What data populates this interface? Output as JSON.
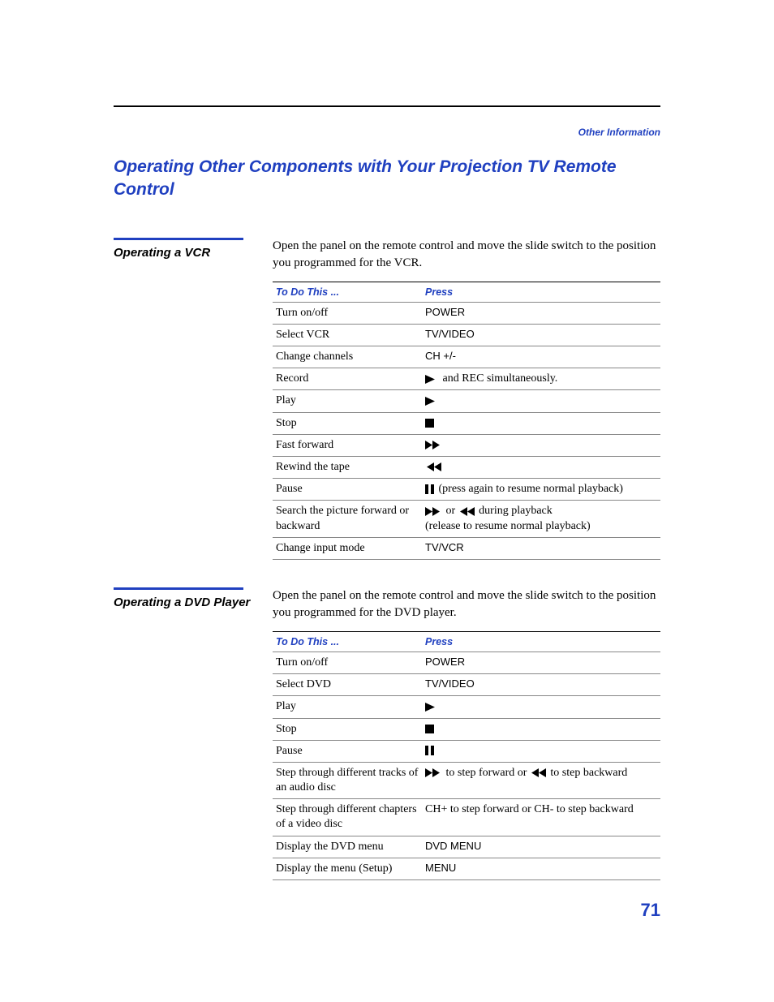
{
  "breadcrumb": "Other Information",
  "page_title": "Operating Other Components with Your Projection TV Remote Control",
  "page_number": "71",
  "colors": {
    "brand": "#2040c0",
    "text": "#000000",
    "rule_light": "#888888"
  },
  "sections": {
    "vcr": {
      "heading": "Operating a VCR",
      "intro": "Open the panel on the remote control and move the slide switch to the position you programmed for the VCR.",
      "header_action": "To Do This ...",
      "header_press": "Press",
      "rows": [
        {
          "action": "Turn on/off",
          "press_type": "text",
          "press": "POWER"
        },
        {
          "action": "Select VCR",
          "press_type": "text",
          "press": "TV/VIDEO"
        },
        {
          "action": "Change channels",
          "press_type": "text",
          "press": "CH +/-"
        },
        {
          "action": "Record",
          "press_type": "icon_text",
          "icon": "play",
          "press": " and REC simultaneously."
        },
        {
          "action": "Play",
          "press_type": "icon",
          "icon": "play"
        },
        {
          "action": "Stop",
          "press_type": "icon",
          "icon": "stop"
        },
        {
          "action": "Fast forward",
          "press_type": "icon",
          "icon": "ff"
        },
        {
          "action": "Rewind the tape",
          "press_type": "icon",
          "icon": "rew"
        },
        {
          "action": "Pause",
          "press_type": "icon_text",
          "icon": "pause",
          "press": " (press again to resume normal playback)"
        },
        {
          "action": "Search the picture forward or backward",
          "press_type": "search",
          "icon1": "ff",
          "mid": " or ",
          "icon2": "rew",
          "text1": " during playback",
          "text2": "(release to resume normal playback)"
        },
        {
          "action": "Change input mode",
          "press_type": "text",
          "press": "TV/VCR"
        }
      ]
    },
    "dvd": {
      "heading": "Operating a DVD Player",
      "intro": "Open the panel on the remote control and move the slide switch to the position you programmed for the DVD player.",
      "header_action": "To Do This ...",
      "header_press": "Press",
      "rows": [
        {
          "action": "Turn on/off",
          "press_type": "text",
          "press": "POWER"
        },
        {
          "action": "Select DVD",
          "press_type": "text",
          "press": "TV/VIDEO"
        },
        {
          "action": "Play",
          "press_type": "icon",
          "icon": "play"
        },
        {
          "action": "Stop",
          "press_type": "icon",
          "icon": "stop"
        },
        {
          "action": "Pause",
          "press_type": "icon",
          "icon": "pause"
        },
        {
          "action": "Step through different tracks of an audio disc",
          "press_type": "step",
          "icon1": "ff",
          "text1": " to step forward or ",
          "icon2": "rew",
          "text2": " to step backward"
        },
        {
          "action": "Step through different chapters of a video disc",
          "press_type": "plain",
          "press": "CH+ to step forward or CH- to step backward"
        },
        {
          "action": "Display the DVD menu",
          "press_type": "text",
          "press": "DVD MENU"
        },
        {
          "action": "Display the menu (Setup)",
          "press_type": "text",
          "press": "MENU"
        }
      ]
    }
  }
}
